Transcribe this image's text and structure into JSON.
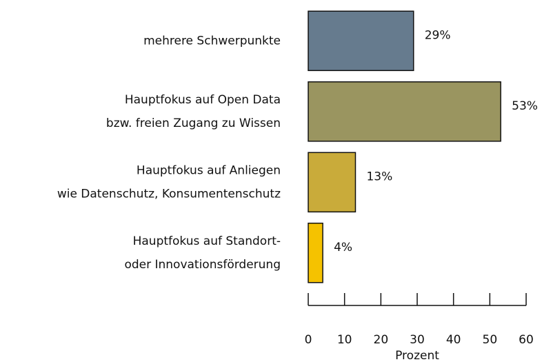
{
  "chart_data": {
    "type": "bar",
    "orientation": "horizontal",
    "categories": [
      [
        "mehrere Schwerpunkte"
      ],
      [
        "Hauptfokus auf Open Data",
        "bzw. freien Zugang zu Wissen"
      ],
      [
        "Hauptfokus auf Anliegen",
        "wie Datenschutz, Konsumentenschutz"
      ],
      [
        "Hauptfokus auf Standort-",
        "oder Innovationsförderung"
      ]
    ],
    "values": [
      29,
      53,
      13,
      4
    ],
    "value_labels": [
      "29%",
      "53%",
      "13%",
      "4%"
    ],
    "colors": [
      "#667b8e",
      "#9a9560",
      "#c9ab3a",
      "#f5c200"
    ],
    "xlabel": "Prozent",
    "xlim": [
      0,
      60
    ],
    "xticks": [
      0,
      10,
      20,
      30,
      40,
      50,
      60
    ]
  }
}
